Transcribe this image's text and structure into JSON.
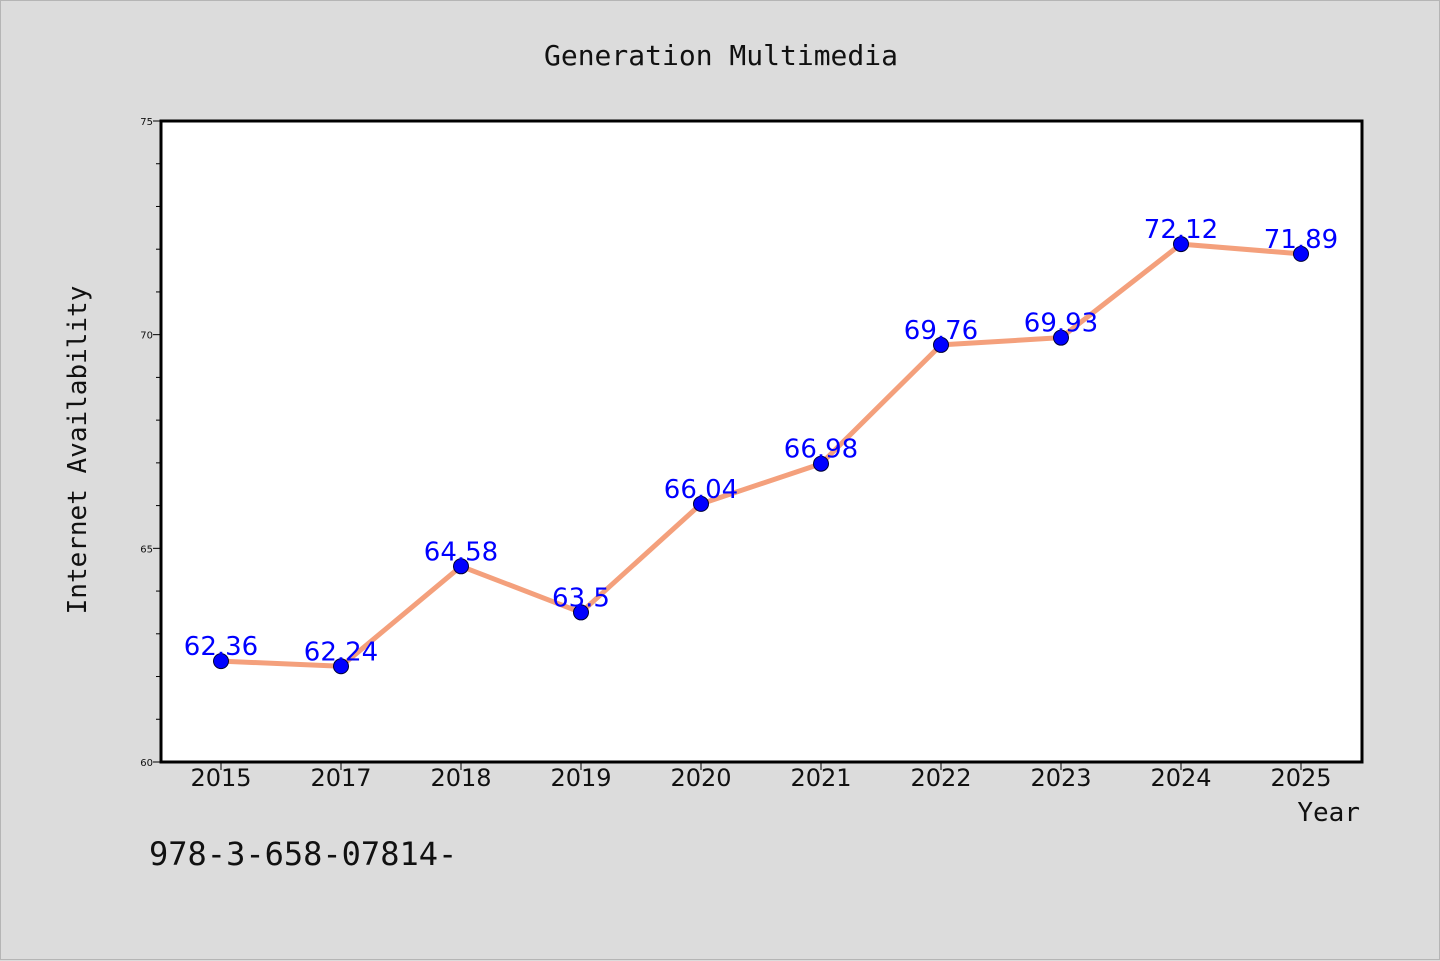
{
  "chart_data": {
    "type": "line",
    "title": "Generation Multimedia",
    "xlabel": "Year",
    "ylabel": "Internet Availability",
    "categories": [
      "2015",
      "2017",
      "2018",
      "2019",
      "2020",
      "2021",
      "2022",
      "2023",
      "2024",
      "2025"
    ],
    "series": [
      {
        "values": [
          62.36,
          62.24,
          64.58,
          63.5,
          66.04,
          66.98,
          69.76,
          69.93,
          72.12,
          71.89
        ],
        "data_labels": [
          "62.36",
          "62.24",
          "64.58",
          "63.5",
          "66.04",
          "66.98",
          "69.76",
          "69.93",
          "72.12",
          "71.89"
        ],
        "line_color": "#f4a07c",
        "marker_color": "#0000ff"
      }
    ],
    "ylim": [
      60,
      75
    ],
    "yticks": [
      60,
      65,
      70,
      75
    ],
    "ytick_labels": [
      "60",
      "65",
      "70",
      "75"
    ],
    "grid": false,
    "legend": "none",
    "data_label_color": "#0000ff",
    "background_color": "#dcdcdc",
    "plot_background_color": "#ffffff"
  },
  "footer": {
    "text": "978-3-658-07814-"
  }
}
